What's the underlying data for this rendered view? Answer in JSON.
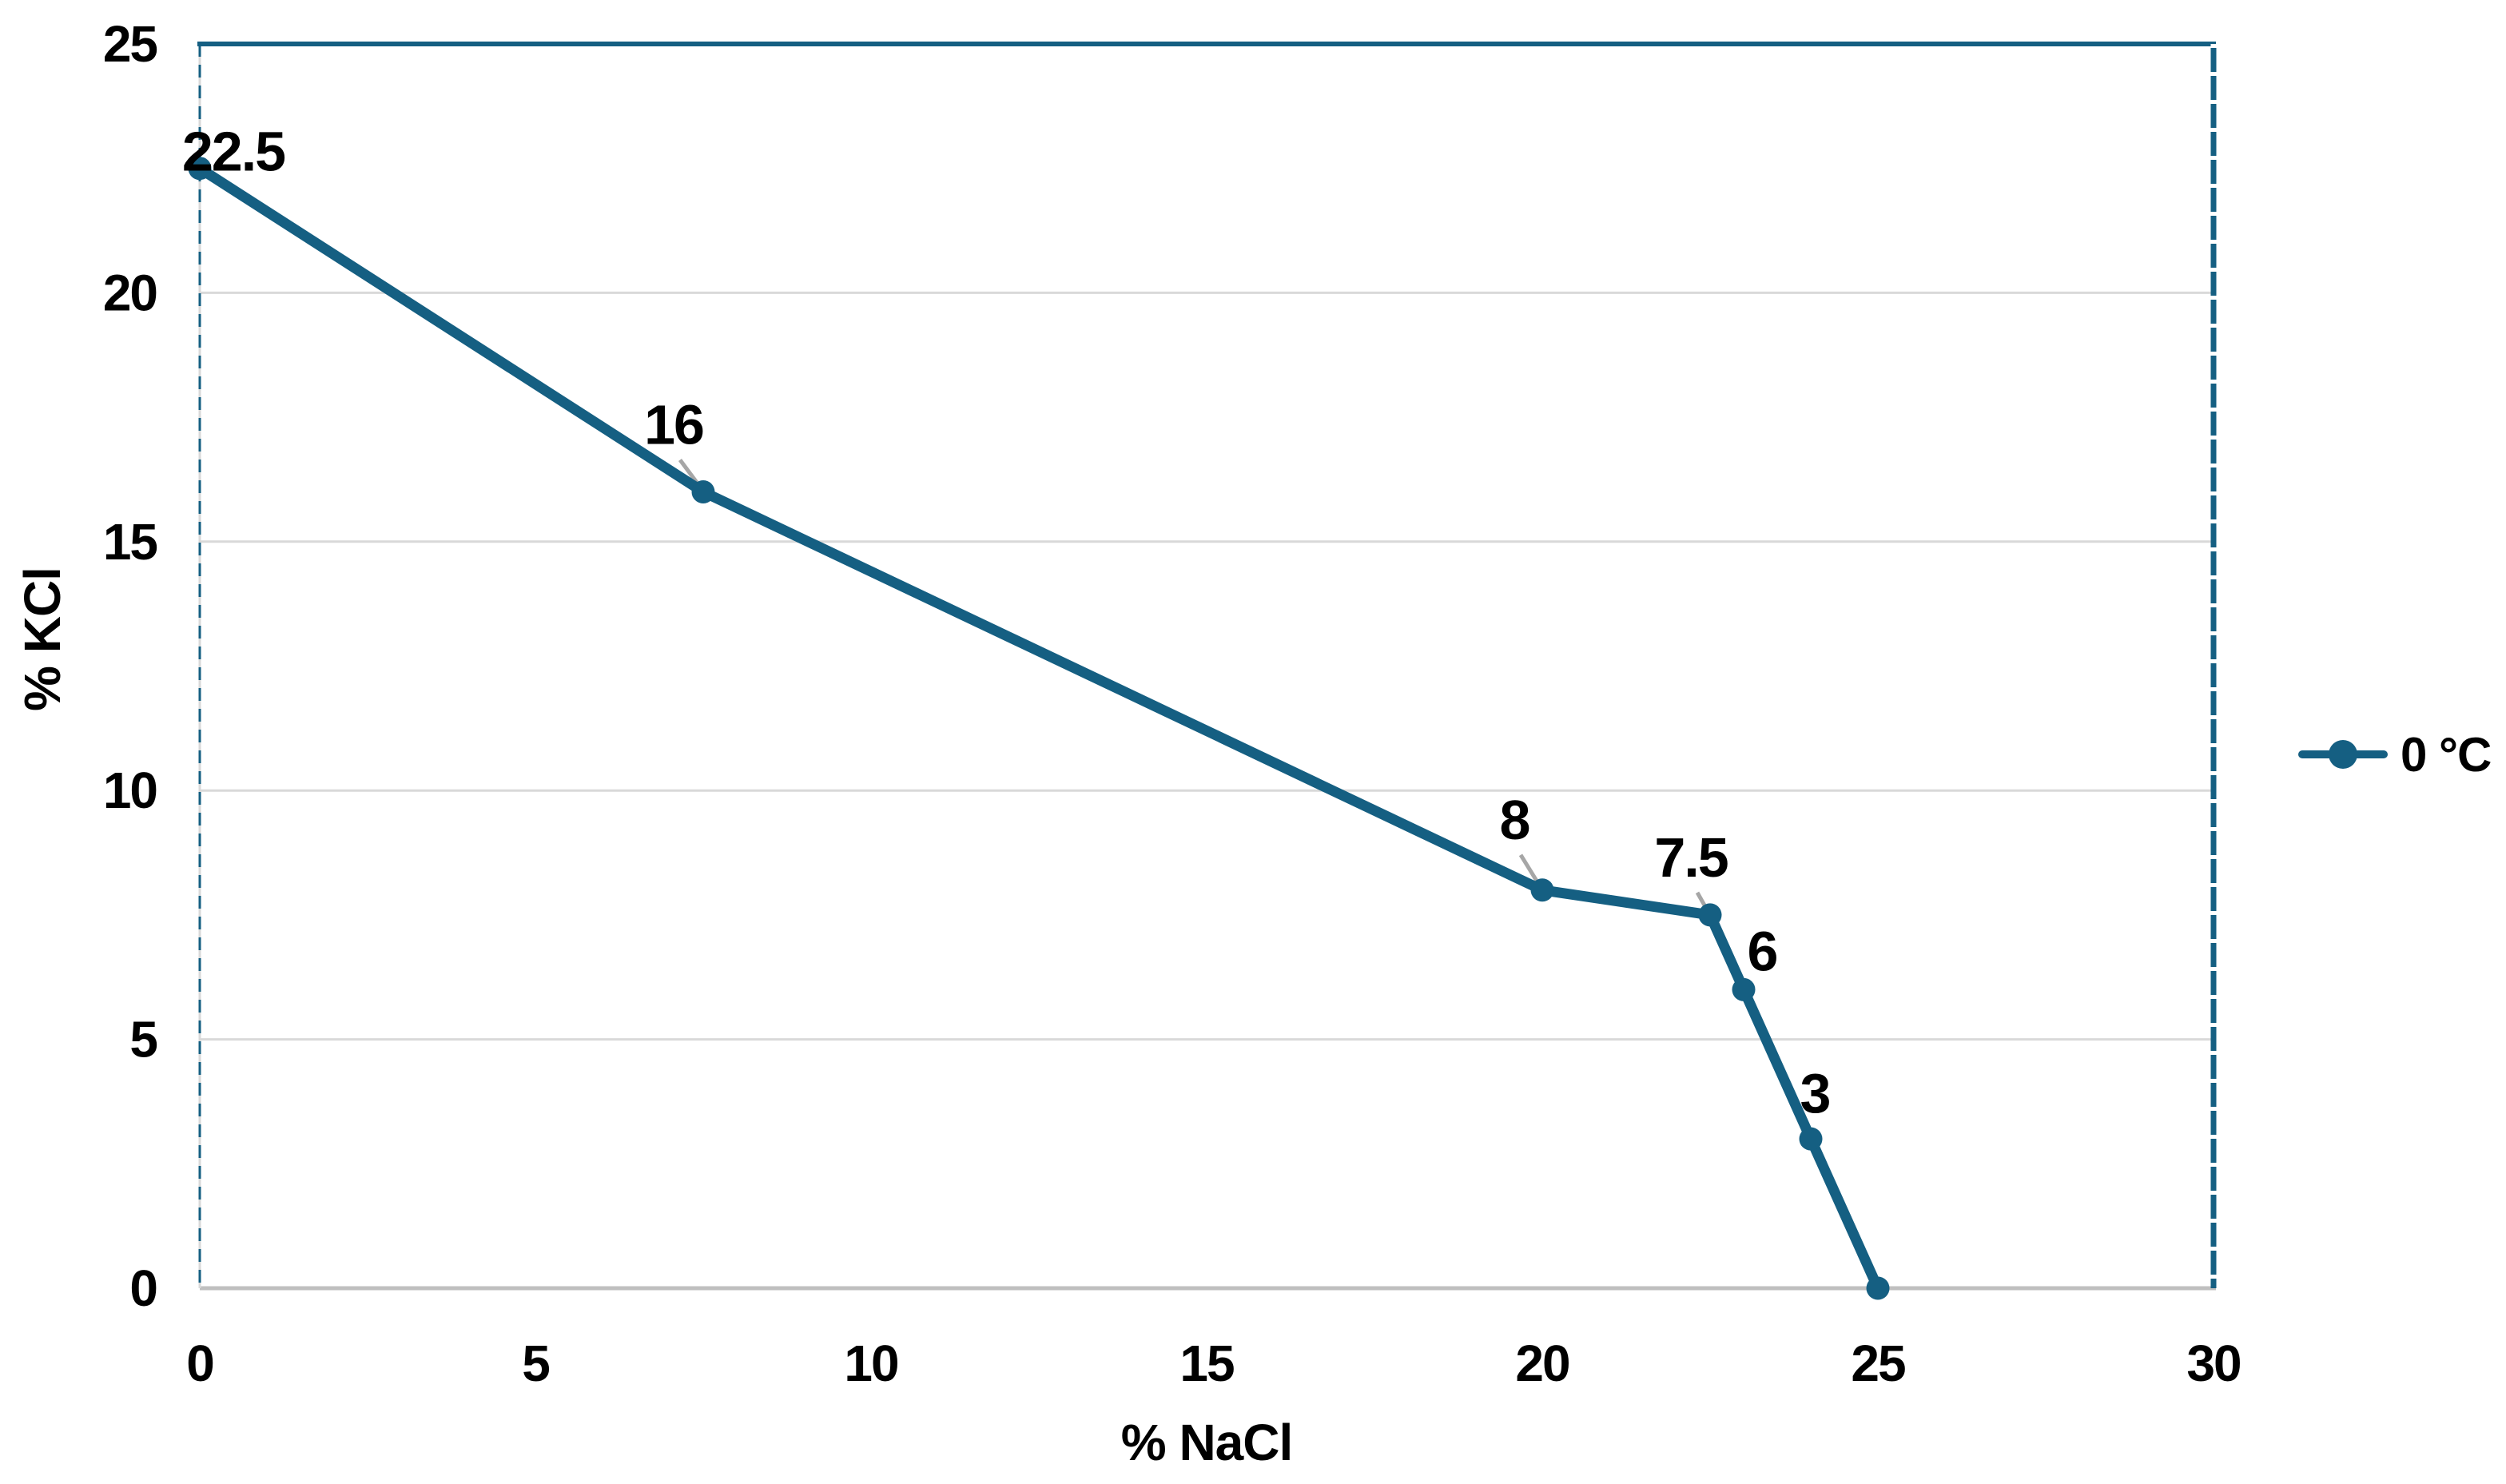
{
  "chart_data": {
    "type": "line",
    "title": "",
    "xlabel": "% NaCl",
    "ylabel": "% KCl",
    "xlim": [
      0,
      30
    ],
    "ylim": [
      0,
      25
    ],
    "xticks": [
      0,
      5,
      10,
      15,
      20,
      25,
      30
    ],
    "yticks": [
      0,
      5,
      10,
      15,
      20,
      25
    ],
    "grid": "horizontal-only",
    "legend_position": "right-middle",
    "colors": {
      "series": "#155F82",
      "gridline": "#D9D9D9",
      "axis_line": "#BFBFBF",
      "leader_line": "#A6A6A6",
      "text": "#000000",
      "background": "#FFFFFF"
    },
    "series": [
      {
        "name": "0 °C",
        "x": [
          0,
          7.5,
          20,
          22.5,
          23,
          24,
          25
        ],
        "y": [
          22.5,
          16,
          8,
          7.5,
          6,
          3,
          0
        ],
        "data_labels": [
          {
            "text": "22.5",
            "dx": 42,
            "dy": -21,
            "leader": false
          },
          {
            "text": "16",
            "dx": -37,
            "dy": -84,
            "leader": true
          },
          {
            "text": "8",
            "dx": -35,
            "dy": -88,
            "leader": true
          },
          {
            "text": "7.5",
            "dx": -24,
            "dy": -72,
            "leader": true
          },
          {
            "text": "6",
            "dx": 23,
            "dy": -48,
            "leader": false
          },
          {
            "text": "3",
            "dx": 5,
            "dy": -57,
            "leader": false
          },
          {
            "text": "",
            "dx": 0,
            "dy": 0,
            "leader": false
          }
        ]
      }
    ]
  }
}
